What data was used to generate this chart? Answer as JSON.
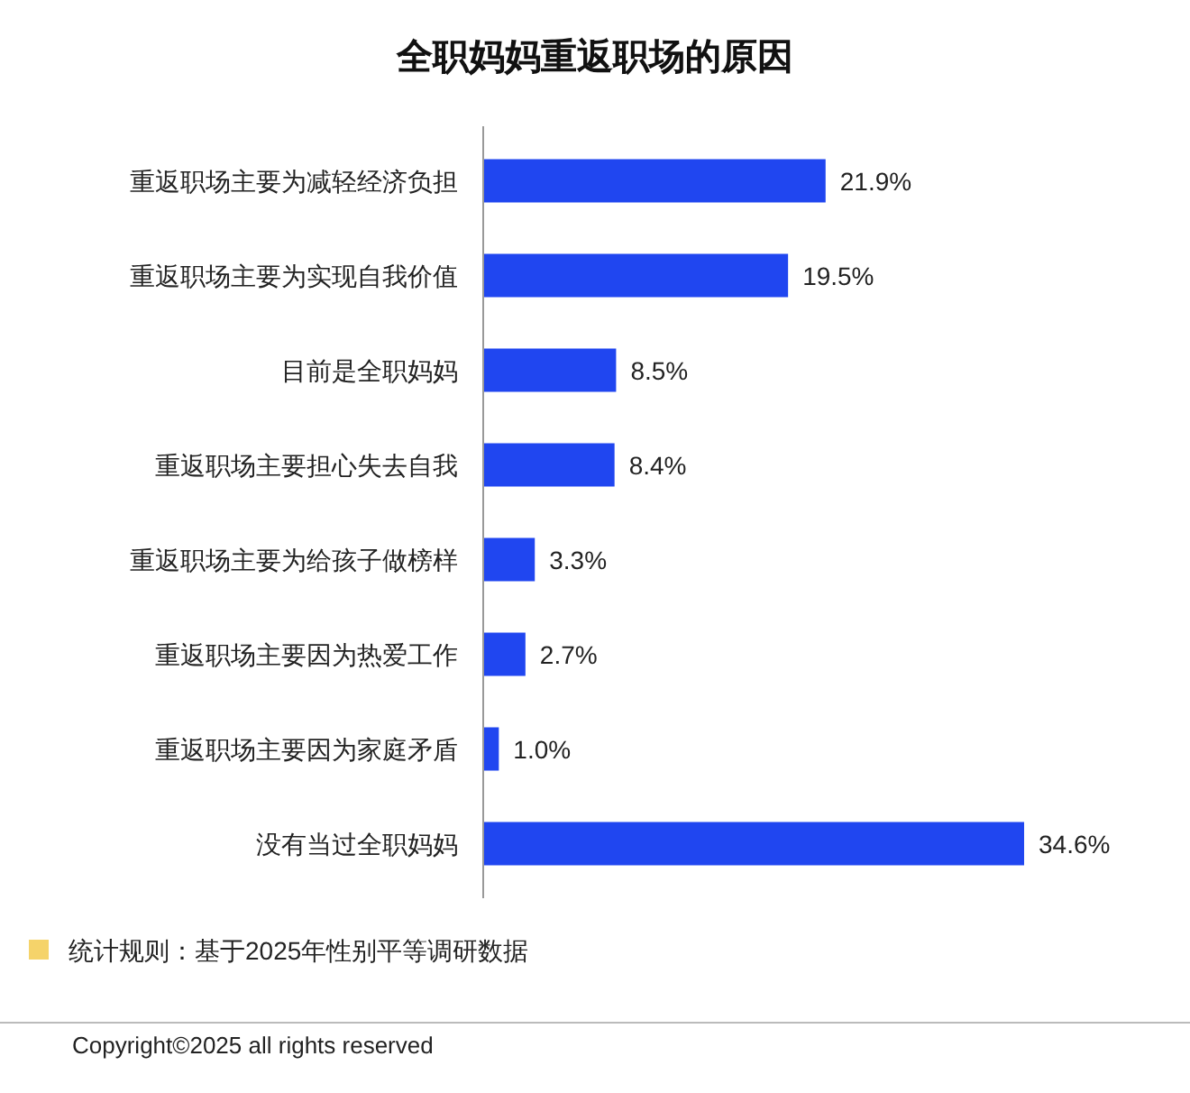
{
  "chart_data": {
    "type": "bar",
    "orientation": "horizontal",
    "title": "全职妈妈重返职场的原因",
    "categories": [
      "重返职场主要为减轻经济负担",
      "重返职场主要为实现自我价值",
      "目前是全职妈妈",
      "重返职场主要担心失去自我",
      "重返职场主要为给孩子做榜样",
      "重返职场主要因为热爱工作",
      "重返职场主要因为家庭矛盾",
      "没有当过全职妈妈"
    ],
    "values": [
      21.9,
      19.5,
      8.5,
      8.4,
      3.3,
      2.7,
      1.0,
      34.6
    ],
    "value_labels": [
      "21.9%",
      "19.5%",
      "8.5%",
      "8.4%",
      "3.3%",
      "2.7%",
      "1.0%",
      "34.6%"
    ],
    "color": "#2046f0",
    "annotations": [
      "统计规则：基于2025年性别平等调研数据",
      "Copyright©2025 all rights reserved"
    ]
  }
}
